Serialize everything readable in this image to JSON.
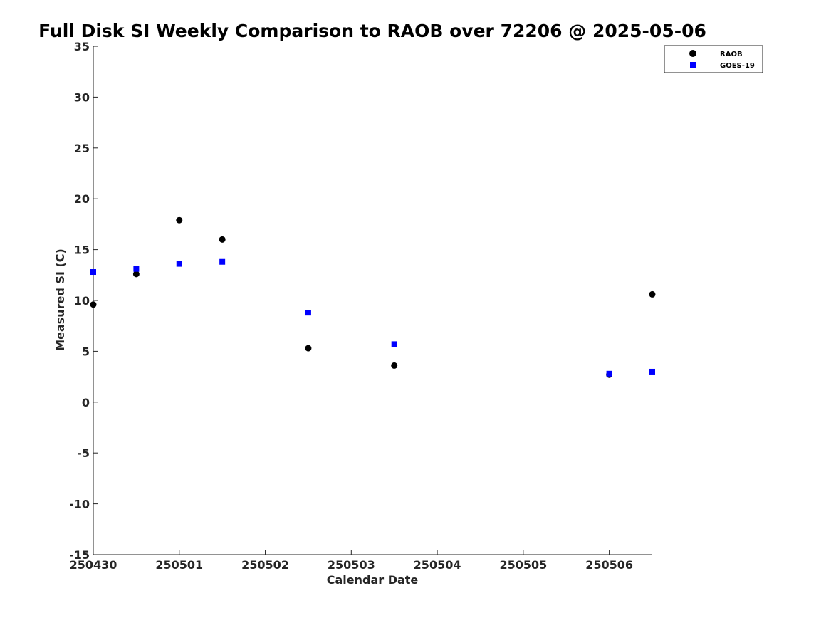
{
  "chart_data": {
    "type": "scatter",
    "title": "Full Disk SI Weekly Comparison to RAOB over 72206 @ 2025-05-06",
    "xlabel": "Calendar Date",
    "ylabel": "Measured SI (C)",
    "xlim": [
      0,
      6.5
    ],
    "ylim": [
      -15,
      35
    ],
    "x_ticks": [
      0,
      1,
      2,
      3,
      4,
      5,
      6
    ],
    "x_tick_labels": [
      "250430",
      "250501",
      "250502",
      "250503",
      "250504",
      "250505",
      "250506"
    ],
    "y_ticks": [
      -15,
      -10,
      -5,
      0,
      5,
      10,
      15,
      20,
      25,
      30,
      35
    ],
    "y_tick_labels": [
      "-15",
      "-10",
      "-5",
      "0",
      "5",
      "10",
      "15",
      "20",
      "25",
      "30",
      "35"
    ],
    "grid": false,
    "legend_position": "top-right",
    "series": [
      {
        "name": "RAOB",
        "marker": "circle",
        "color": "#000000",
        "x": [
          0,
          0.5,
          1,
          1.5,
          2.5,
          3.5,
          6,
          6.5
        ],
        "y": [
          9.6,
          12.6,
          17.9,
          16.0,
          5.3,
          3.6,
          2.7,
          10.6
        ]
      },
      {
        "name": "GOES-19",
        "marker": "square",
        "color": "#0000ff",
        "x": [
          0,
          0.5,
          1,
          1.5,
          2.5,
          3.5,
          6,
          6.5
        ],
        "y": [
          12.8,
          13.1,
          13.6,
          13.8,
          8.8,
          5.7,
          2.8,
          3.0
        ]
      }
    ]
  }
}
